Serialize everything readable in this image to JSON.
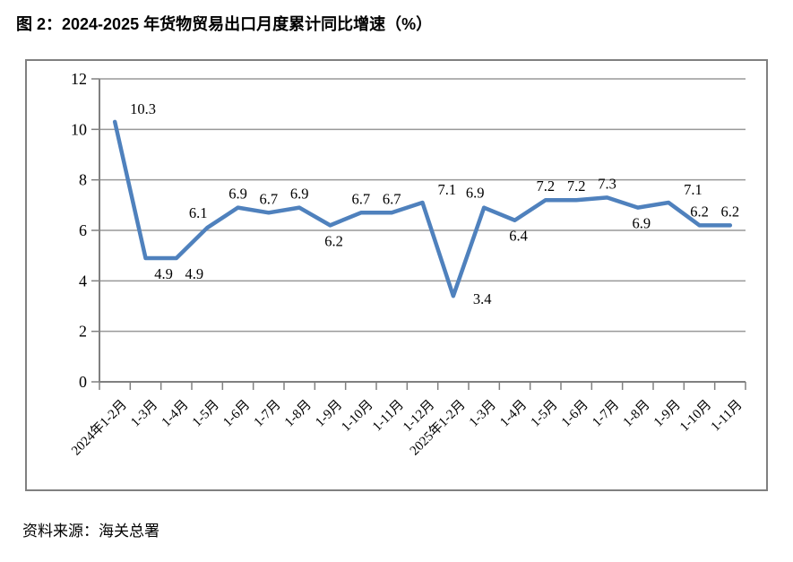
{
  "page": {
    "title": "图 2：2024-2025 年货物贸易出口月度累计同比增速（%）",
    "source_note": "资料来源：海关总署"
  },
  "chart_data": {
    "type": "line",
    "title": "图 2：2024-2025 年货物贸易出口月度累计同比增速（%）",
    "categories": [
      "2024年1-2月",
      "1-3月",
      "1-4月",
      "1-5月",
      "1-6月",
      "1-7月",
      "1-8月",
      "1-9月",
      "1-10月",
      "1-11月",
      "1-12月",
      "2025年1-2月",
      "1-3月",
      "1-4月",
      "1-5月",
      "1-6月",
      "1-7月",
      "1-8月",
      "1-9月",
      "1-10月",
      "1-11月"
    ],
    "values": [
      10.3,
      4.9,
      4.9,
      6.1,
      6.9,
      6.7,
      6.9,
      6.2,
      6.7,
      6.7,
      7.1,
      3.4,
      6.9,
      6.4,
      7.2,
      7.2,
      7.3,
      6.9,
      7.1,
      6.2,
      6.2
    ],
    "data_labels": true,
    "label_positions": [
      "above-right",
      "below-right",
      "below-right",
      "above-left",
      "above",
      "above",
      "above",
      "below",
      "above",
      "above",
      "above-right",
      "right",
      "above-left",
      "below",
      "above",
      "above",
      "above",
      "below",
      "above-right",
      "above",
      "above"
    ],
    "xlabel": "",
    "ylabel": "",
    "ylim": [
      0,
      12
    ],
    "yticks": [
      0,
      2,
      4,
      6,
      8,
      10,
      12
    ],
    "grid": true,
    "legend": "none",
    "x_tick_rotation": -45,
    "colors": {
      "series": "#4F81BD",
      "gridline": "#999999",
      "axis": "#808080",
      "frame_border": "#808080",
      "text": "#000000"
    }
  }
}
